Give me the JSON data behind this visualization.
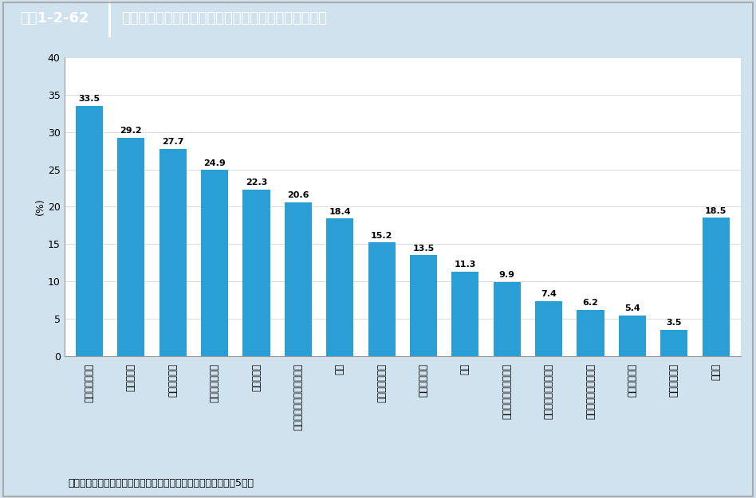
{
  "header_label": "図表1-2-62",
  "header_title": "保育士として就業した者が退職した理由（複数回答）",
  "categories": [
    "職場の人間関係",
    "給料が安い",
    "仕事量が多い",
    "労働時間が長い",
    "妊娠・出産",
    "健康上の理由（体力含む）",
    "結婚",
    "他業種への興味",
    "子育て・家事",
    "転居",
    "職業適性に対する不安",
    "保護者対応等の大変さ",
    "家族の事情（介護等）",
    "雇用期間満了",
    "配偶者の意向",
    "その他"
  ],
  "values": [
    33.5,
    29.2,
    27.7,
    24.9,
    22.3,
    20.6,
    18.4,
    15.2,
    13.5,
    11.3,
    9.9,
    7.4,
    6.2,
    5.4,
    3.5,
    18.5
  ],
  "bar_color": "#2A9FD6",
  "ylabel": "(%)",
  "ylim": [
    0,
    40
  ],
  "yticks": [
    0,
    5,
    10,
    15,
    20,
    25,
    30,
    35,
    40
  ],
  "source": "資料：東京都福祉保健局「東京都保育士実態調査」（令和元年5月）",
  "bg_color": "#CFE2EE",
  "plot_bg_color": "#FFFFFF",
  "header_bg": "#3A78AF",
  "header_divider": "#FFFFFF"
}
